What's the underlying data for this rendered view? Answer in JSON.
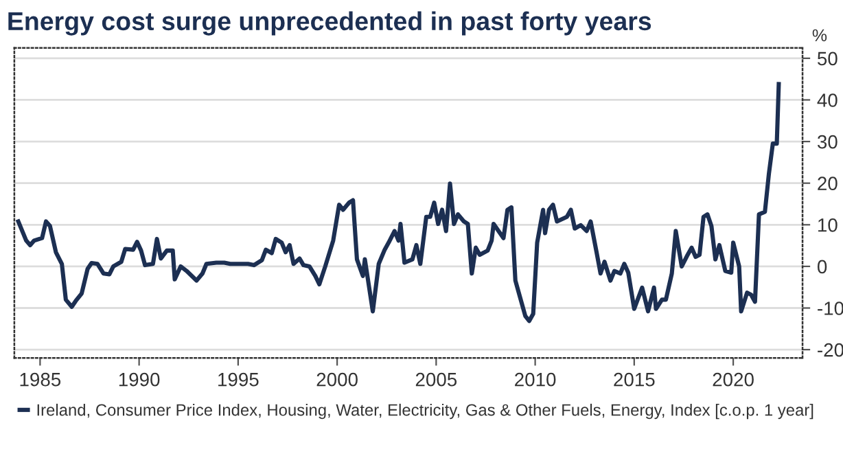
{
  "chart_data": {
    "type": "line",
    "title": "Energy cost surge unprecedented in past forty years",
    "ylabel": "%",
    "series": [
      {
        "name": "Ireland, Consumer Price Index, Housing, Water, Electricity, Gas & Other Fuels, Energy, Index [c.o.p. 1 year]",
        "color": "#1c2f52",
        "x": [
          1983.9,
          1984.1,
          1984.3,
          1984.5,
          1984.7,
          1985.1,
          1985.3,
          1985.5,
          1985.8,
          1986.1,
          1986.3,
          1986.6,
          1986.8,
          1987.1,
          1987.4,
          1987.6,
          1987.9,
          1988.2,
          1988.5,
          1988.7,
          1989.1,
          1989.3,
          1989.7,
          1989.9,
          1990.1,
          1990.3,
          1990.7,
          1990.9,
          1991.1,
          1991.4,
          1991.7,
          1991.8,
          1992.1,
          1992.4,
          1992.9,
          1993.2,
          1993.4,
          1993.9,
          1994.3,
          1994.6,
          1995.5,
          1995.8,
          1996.2,
          1996.4,
          1996.7,
          1996.9,
          1997.2,
          1997.4,
          1997.6,
          1997.8,
          1998.1,
          1998.3,
          1998.6,
          1998.9,
          1999.1,
          1999.4,
          1999.8,
          2000.1,
          2000.3,
          2000.6,
          2000.8,
          2001.0,
          2001.3,
          2001.4,
          2001.8,
          2002.1,
          2002.4,
          2002.6,
          2002.9,
          2003.1,
          2003.2,
          2003.4,
          2003.8,
          2004.0,
          2004.2,
          2004.5,
          2004.7,
          2004.9,
          2005.1,
          2005.3,
          2005.5,
          2005.7,
          2005.9,
          2006.1,
          2006.4,
          2006.6,
          2006.8,
          2007.0,
          2007.2,
          2007.6,
          2007.8,
          2007.9,
          2008.4,
          2008.6,
          2008.8,
          2009.0,
          2009.2,
          2009.5,
          2009.7,
          2009.9,
          2010.1,
          2010.4,
          2010.5,
          2010.7,
          2010.9,
          2011.1,
          2011.6,
          2011.8,
          2012.0,
          2012.3,
          2012.6,
          2012.8,
          2013.1,
          2013.3,
          2013.5,
          2013.8,
          2014.0,
          2014.3,
          2014.5,
          2014.7,
          2015.0,
          2015.4,
          2015.7,
          2016.0,
          2016.1,
          2016.4,
          2016.6,
          2016.9,
          2017.1,
          2017.4,
          2017.7,
          2017.9,
          2018.1,
          2018.3,
          2018.5,
          2018.7,
          2018.9,
          2019.1,
          2019.3,
          2019.6,
          2019.9,
          2020.0,
          2020.3,
          2020.4,
          2020.7,
          2020.9,
          2021.1,
          2021.3,
          2021.6,
          2021.8,
          2022.0,
          2022.2,
          2022.3
        ],
        "values": [
          10.8,
          8.5,
          6.2,
          5.1,
          6.2,
          6.8,
          10.8,
          9.7,
          3.4,
          0.6,
          -8,
          -9.7,
          -8.3,
          -6.5,
          -0.6,
          0.8,
          0.6,
          -1.7,
          -1.9,
          0,
          1.1,
          4.2,
          4,
          5.9,
          3.8,
          0.3,
          0.6,
          6.6,
          1.9,
          3.8,
          3.8,
          -3.1,
          0,
          -1.1,
          -3.4,
          -1.7,
          0.6,
          0.9,
          0.9,
          0.6,
          0.6,
          0.3,
          1.5,
          4,
          3.2,
          6.6,
          5.7,
          3.4,
          5.1,
          0.6,
          1.9,
          0.3,
          0,
          -2.3,
          -4.3,
          0,
          6.2,
          14.8,
          13.6,
          15.3,
          15.9,
          1.7,
          -2.3,
          1.7,
          -10.8,
          0.6,
          4,
          5.7,
          8.5,
          6.2,
          10.2,
          0.9,
          1.7,
          5.1,
          0.6,
          11.9,
          11.9,
          15.3,
          10.2,
          13.6,
          8.5,
          19.9,
          10.2,
          12.5,
          10.8,
          10.2,
          -1.7,
          4.5,
          2.8,
          3.8,
          6.2,
          10.2,
          6.8,
          13.6,
          14.2,
          -3.4,
          -6.8,
          -11.9,
          -13.1,
          -11.4,
          5.7,
          13.6,
          8,
          13.6,
          14.8,
          10.8,
          11.9,
          13.6,
          9.1,
          9.9,
          8.5,
          10.8,
          3.4,
          -1.7,
          1.1,
          -3.4,
          -1.1,
          -1.7,
          0.6,
          -1.5,
          -10.2,
          -5.1,
          -10.8,
          -5.1,
          -10.2,
          -8,
          -8,
          -1.7,
          8.5,
          0,
          2.8,
          4.5,
          2.3,
          2.8,
          11.9,
          12.5,
          9.7,
          1.7,
          5.1,
          -1.1,
          -1.5,
          5.7,
          0,
          -10.8,
          -6.3,
          -6.8,
          -8.5,
          12.5,
          13.1,
          22.2,
          29.5,
          29.5,
          43.8
        ]
      }
    ],
    "xlim": [
      1983.7,
      2023.5
    ],
    "xticks": [
      1985,
      1990,
      1995,
      2000,
      2005,
      2010,
      2015,
      2020
    ],
    "ylim": [
      -22,
      52.5
    ],
    "yticks": [
      -20,
      -10,
      0,
      10,
      20,
      30,
      40,
      50
    ],
    "grid": "y",
    "legend": "bottom",
    "line_style": "solid",
    "marker": "none"
  }
}
